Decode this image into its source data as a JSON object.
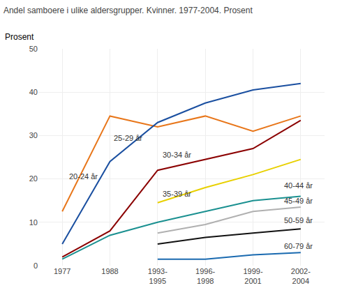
{
  "chart_data": {
    "type": "line",
    "title": "Andel samboere i ulike aldersgrupper. Kvinner. 1977-2004. Prosent",
    "ylabel": "Prosent",
    "categories": [
      "1977",
      "1988",
      "1993-\n1995",
      "1996-\n1998",
      "1999-\n2001",
      "2002-\n2004"
    ],
    "series": [
      {
        "name": "20-24 år",
        "color": "#E8761A",
        "values": [
          12.5,
          34.5,
          32.0,
          34.5,
          31.0,
          34.5
        ]
      },
      {
        "name": "25-29 år",
        "color": "#1A4FA0",
        "values": [
          5.0,
          24.0,
          33.0,
          37.5,
          40.5,
          42.0
        ]
      },
      {
        "name": "30-34 år",
        "color": "#8B0000",
        "values": [
          2.0,
          8.0,
          22.0,
          24.5,
          27.0,
          33.5
        ]
      },
      {
        "name": "35-39 år",
        "color": "#E8D000",
        "values": [
          null,
          null,
          14.5,
          18.0,
          21.0,
          24.5
        ]
      },
      {
        "name": "40-44 år",
        "color": "#1A9090",
        "values": [
          1.5,
          7.0,
          10.0,
          12.5,
          15.0,
          16.0
        ]
      },
      {
        "name": "45-49 år",
        "color": "#B0B0B0",
        "values": [
          null,
          null,
          7.5,
          9.5,
          12.5,
          13.5
        ]
      },
      {
        "name": "50-59 år",
        "color": "#111111",
        "values": [
          null,
          null,
          5.0,
          6.5,
          7.5,
          8.5
        ]
      },
      {
        "name": "60-79 år",
        "color": "#1A6AB0",
        "values": [
          null,
          null,
          1.5,
          1.5,
          2.5,
          3.0
        ]
      }
    ],
    "annotations": [
      {
        "text": "20-24 år",
        "x": 0.12,
        "y": 20.5
      },
      {
        "text": "25-29 år",
        "x": 1.05,
        "y": 29.5
      },
      {
        "text": "30-34 år",
        "x": 2.08,
        "y": 25.5
      },
      {
        "text": "35-39 år",
        "x": 2.08,
        "y": 16.5
      },
      {
        "text": "40-44 år",
        "x": 4.62,
        "y": 18.5
      },
      {
        "text": "45-49 år",
        "x": 4.62,
        "y": 15.0
      },
      {
        "text": "50-59 år",
        "x": 4.62,
        "y": 10.5
      },
      {
        "text": "60-79 år",
        "x": 4.62,
        "y": 4.5
      }
    ],
    "ylim": [
      0,
      50
    ],
    "yticks": [
      0,
      10,
      20,
      30,
      40,
      50
    ],
    "grid": true
  }
}
